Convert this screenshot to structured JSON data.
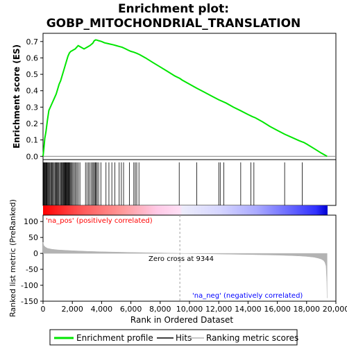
{
  "chart_data": {
    "type": "line",
    "title_line1": "Enrichment plot:",
    "title_line2": "GOBP_MITOCHONDRIAL_TRANSLATION",
    "ylabel_top": "Enrichment score (ES)",
    "ylabel_bottom": "Ranked list metric (PreRanked)",
    "xlabel": "Rank in Ordered Dataset",
    "xlim": [
      0,
      20000
    ],
    "es_ylim": [
      -0.02,
      0.75
    ],
    "metric_ylim": [
      -150,
      120
    ],
    "x_ticks": [
      "0",
      "2,000",
      "4,000",
      "6,000",
      "8,000",
      "10,000",
      "12,000",
      "14,000",
      "16,000",
      "18,000",
      "20,000"
    ],
    "x_tick_values": [
      0,
      2000,
      4000,
      6000,
      8000,
      10000,
      12000,
      14000,
      16000,
      18000,
      20000
    ],
    "es_ticks": [
      "0.0",
      "0.1",
      "0.2",
      "0.3",
      "0.4",
      "0.5",
      "0.6",
      "0.7"
    ],
    "es_tick_values": [
      0.0,
      0.1,
      0.2,
      0.3,
      0.4,
      0.5,
      0.6,
      0.7
    ],
    "metric_ticks": [
      "100",
      "50",
      "0",
      "-50",
      "-100",
      "-150"
    ],
    "metric_tick_values": [
      100,
      50,
      0,
      -50,
      -100,
      -150
    ],
    "total_genes": 19400,
    "zero_cross_label": "Zero cross at 9344",
    "zero_cross": 9344,
    "pos_label": "'na_pos' (positively correlated)",
    "neg_label": "'na_neg' (negatively correlated)",
    "enrichment_profile": {
      "x": [
        0,
        60,
        120,
        200,
        300,
        400,
        500,
        600,
        700,
        800,
        900,
        1000,
        1100,
        1200,
        1300,
        1400,
        1500,
        1600,
        1700,
        1800,
        1900,
        2000,
        2100,
        2200,
        2300,
        2400,
        2500,
        2600,
        2800,
        3000,
        3200,
        3400,
        3500,
        3600,
        3700,
        3800,
        4000,
        4200,
        4400,
        4600,
        4800,
        5000,
        5200,
        5400,
        5600,
        5800,
        6000,
        6200,
        6400,
        6600,
        7000,
        7500,
        8000,
        8500,
        9000,
        9344,
        9500,
        10000,
        10500,
        11000,
        11500,
        12000,
        12500,
        13000,
        13500,
        14000,
        14300,
        14500,
        15000,
        15500,
        16000,
        16500,
        17000,
        17500,
        17700,
        17800,
        18000,
        18500,
        19000,
        19400
      ],
      "y": [
        0.0,
        0.05,
        0.11,
        0.15,
        0.22,
        0.28,
        0.3,
        0.32,
        0.34,
        0.36,
        0.38,
        0.41,
        0.44,
        0.46,
        0.49,
        0.52,
        0.55,
        0.58,
        0.61,
        0.63,
        0.64,
        0.645,
        0.65,
        0.655,
        0.665,
        0.675,
        0.67,
        0.665,
        0.655,
        0.665,
        0.675,
        0.69,
        0.705,
        0.71,
        0.708,
        0.705,
        0.7,
        0.692,
        0.688,
        0.684,
        0.68,
        0.675,
        0.67,
        0.665,
        0.657,
        0.648,
        0.64,
        0.635,
        0.628,
        0.62,
        0.6,
        0.572,
        0.545,
        0.518,
        0.49,
        0.475,
        0.465,
        0.44,
        0.415,
        0.392,
        0.368,
        0.345,
        0.325,
        0.3,
        0.278,
        0.255,
        0.242,
        0.235,
        0.21,
        0.182,
        0.158,
        0.135,
        0.115,
        0.095,
        0.088,
        0.085,
        0.075,
        0.048,
        0.02,
        0.0
      ]
    },
    "hits": [
      20,
      50,
      80,
      120,
      160,
      200,
      240,
      280,
      330,
      380,
      430,
      480,
      540,
      600,
      650,
      700,
      760,
      820,
      870,
      920,
      980,
      1030,
      1080,
      1140,
      1200,
      1260,
      1310,
      1360,
      1400,
      1440,
      1480,
      1520,
      1560,
      1600,
      1640,
      1680,
      1720,
      1760,
      1800,
      1850,
      1900,
      1960,
      2030,
      2100,
      2180,
      2250,
      2330,
      2420,
      2520,
      2900,
      3000,
      3100,
      3200,
      3300,
      3380,
      3450,
      3520,
      3580,
      3640,
      3700,
      3800,
      3950,
      4300,
      4500,
      4700,
      4900,
      5200,
      5350,
      5500,
      5900,
      6200,
      6300,
      6400,
      6550,
      9300,
      10500,
      12000,
      12100,
      12350,
      13500,
      14200,
      14400,
      16500,
      17700
    ],
    "metric_profile": {
      "x": [
        0,
        50,
        150,
        300,
        600,
        1000,
        2000,
        3000,
        4000,
        5000,
        6000,
        7000,
        8000,
        9000,
        9344,
        10000,
        11000,
        12000,
        13000,
        14000,
        15000,
        16000,
        17000,
        17500,
        18000,
        18500,
        18800,
        19000,
        19150,
        19250,
        19330,
        19380,
        19400
      ],
      "y": [
        35,
        25,
        20,
        16,
        13,
        11,
        8.5,
        6.5,
        5,
        4,
        3,
        2.2,
        1.5,
        0.5,
        0,
        -0.6,
        -1.2,
        -2,
        -2.8,
        -3.5,
        -4.5,
        -5.5,
        -7,
        -8,
        -9.5,
        -12,
        -15,
        -18,
        -22,
        -28,
        -40,
        -90,
        -140
      ]
    },
    "legend": [
      "Enrichment profile",
      "Hits",
      "Ranking metric scores"
    ],
    "colors": {
      "enrichment": "#00e600",
      "hit": "#000000",
      "metric": "#b3b3b3",
      "pos_text": "#ff0000",
      "neg_text": "#0000ff",
      "zero_line": "#a0a0a0"
    }
  }
}
